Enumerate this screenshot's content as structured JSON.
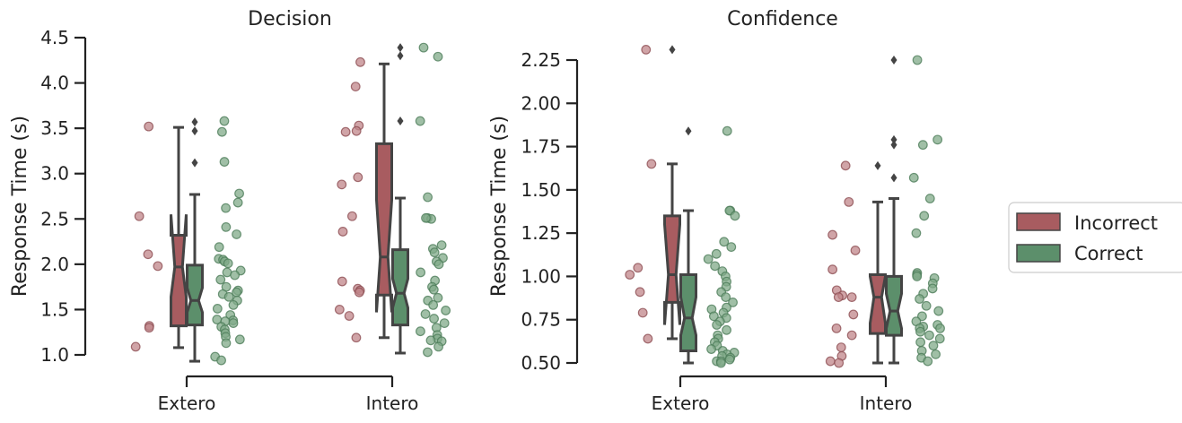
{
  "chart_data": [
    {
      "type": "box",
      "title": "Decision",
      "xlabel": "",
      "ylabel": "Response Time (s)",
      "ylim": [
        1.0,
        4.5
      ],
      "yticks": [
        1.0,
        1.5,
        2.0,
        2.5,
        3.0,
        3.5,
        4.0,
        4.5
      ],
      "ytick_labels": [
        "1.0",
        "1.5",
        "2.0",
        "2.5",
        "3.0",
        "3.5",
        "4.0",
        "4.5"
      ],
      "categories": [
        "Extero",
        "Intero"
      ],
      "series": [
        {
          "name": "Incorrect",
          "boxes": [
            {
              "q1": 1.32,
              "median": 1.97,
              "q3": 2.32,
              "ci_low": 1.64,
              "ci_high": 2.55,
              "whislo": 1.08,
              "whishi": 3.51,
              "fliers": []
            },
            {
              "q1": 1.66,
              "median": 2.08,
              "q3": 3.33,
              "ci_low": 1.47,
              "ci_high": 2.71,
              "whislo": 1.19,
              "whishi": 4.21,
              "fliers": []
            }
          ],
          "points": [
            [
              3.52,
              2.53,
              2.11,
              1.98,
              1.32,
              1.3,
              1.09
            ],
            [
              4.23,
              3.96,
              3.53,
              3.47,
              3.46,
              2.96,
              2.88,
              2.53,
              2.36,
              1.81,
              1.73,
              1.71,
              1.69,
              1.5,
              1.43,
              1.19
            ]
          ]
        },
        {
          "name": "Correct",
          "boxes": [
            {
              "q1": 1.33,
              "median": 1.6,
              "q3": 1.99,
              "ci_low": 1.47,
              "ci_high": 1.74,
              "whislo": 0.93,
              "whishi": 2.77,
              "fliers": [
                3.57,
                3.47,
                3.12
              ]
            },
            {
              "q1": 1.33,
              "median": 1.68,
              "q3": 2.16,
              "ci_low": 1.52,
              "ci_high": 1.84,
              "whislo": 1.02,
              "whishi": 2.73,
              "fliers": [
                4.39,
                4.3,
                3.58
              ]
            }
          ],
          "points": [
            [
              3.58,
              3.46,
              3.13,
              2.78,
              2.68,
              2.62,
              2.41,
              2.33,
              2.19,
              2.06,
              2.05,
              2.03,
              2.01,
              1.93,
              1.91,
              1.88,
              1.83,
              1.75,
              1.71,
              1.69,
              1.67,
              1.64,
              1.6,
              1.55,
              1.51,
              1.44,
              1.39,
              1.38,
              1.37,
              1.35,
              1.31,
              1.28,
              1.24,
              1.2,
              1.17,
              1.13,
              0.98,
              0.94
            ],
            [
              4.39,
              4.29,
              3.58,
              2.74,
              2.51,
              2.5,
              2.51,
              2.21,
              2.17,
              2.13,
              2.07,
              2.03,
              2.0,
              1.91,
              1.82,
              1.75,
              1.72,
              1.63,
              1.6,
              1.55,
              1.49,
              1.45,
              1.4,
              1.35,
              1.3,
              1.26,
              1.22,
              1.18,
              1.16,
              1.15,
              1.09,
              1.03
            ]
          ]
        }
      ]
    },
    {
      "type": "box",
      "title": "Confidence",
      "xlabel": "",
      "ylabel": "Response Time (s)",
      "ylim": [
        0.5,
        2.25
      ],
      "yticks": [
        0.5,
        0.75,
        1.0,
        1.25,
        1.5,
        1.75,
        2.0,
        2.25
      ],
      "ytick_labels": [
        "0.50",
        "0.75",
        "1.00",
        "1.25",
        "1.50",
        "1.75",
        "2.00",
        "2.25"
      ],
      "categories": [
        "Extero",
        "Intero"
      ],
      "series": [
        {
          "name": "Incorrect",
          "boxes": [
            {
              "q1": 0.85,
              "median": 1.01,
              "q3": 1.35,
              "ci_low": 0.72,
              "ci_high": 1.3,
              "whislo": 0.64,
              "whishi": 1.65,
              "fliers": [
                2.31
              ]
            },
            {
              "q1": 0.67,
              "median": 0.88,
              "q3": 1.01,
              "ci_low": 0.73,
              "ci_high": 1.0,
              "whislo": 0.5,
              "whishi": 1.43,
              "fliers": [
                1.64
              ]
            }
          ],
          "points": [
            [
              2.31,
              1.65,
              1.05,
              1.01,
              0.91,
              0.79,
              0.64
            ],
            [
              1.64,
              1.43,
              1.24,
              1.15,
              1.04,
              0.92,
              0.89,
              0.88,
              0.88,
              0.78,
              0.7,
              0.66,
              0.59,
              0.54,
              0.51,
              0.5
            ]
          ]
        },
        {
          "name": "Correct",
          "boxes": [
            {
              "q1": 0.57,
              "median": 0.76,
              "q3": 1.01,
              "ci_low": 0.66,
              "ci_high": 0.88,
              "whislo": 0.5,
              "whishi": 1.38,
              "fliers": [
                1.84
              ]
            },
            {
              "q1": 0.66,
              "median": 0.8,
              "q3": 1.0,
              "ci_low": 0.7,
              "ci_high": 0.9,
              "whislo": 0.5,
              "whishi": 1.45,
              "fliers": [
                2.25,
                1.79,
                1.76,
                1.57
              ]
            }
          ],
          "points": [
            [
              1.84,
              1.38,
              1.38,
              1.35,
              1.2,
              1.17,
              1.13,
              1.1,
              1.06,
              1.03,
              1.0,
              0.97,
              0.94,
              0.91,
              0.88,
              0.85,
              0.82,
              0.81,
              0.79,
              0.77,
              0.76,
              0.74,
              0.72,
              0.69,
              0.66,
              0.64,
              0.62,
              0.6,
              0.58,
              0.57,
              0.56,
              0.55,
              0.54,
              0.53,
              0.52,
              0.51,
              0.51,
              0.5
            ],
            [
              2.25,
              1.79,
              1.76,
              1.57,
              1.45,
              1.35,
              1.25,
              1.02,
              1.01,
              1.0,
              0.99,
              0.96,
              0.93,
              0.9,
              0.87,
              0.83,
              0.8,
              0.77,
              0.74,
              0.72,
              0.71,
              0.7,
              0.7,
              0.68,
              0.66,
              0.64,
              0.62,
              0.6,
              0.57,
              0.55,
              0.53,
              0.51
            ]
          ]
        }
      ]
    }
  ],
  "legend": {
    "position": "center-right",
    "items": [
      {
        "label": "Incorrect",
        "color": "#a85c60"
      },
      {
        "label": "Correct",
        "color": "#5c8f6b"
      }
    ]
  },
  "colors": {
    "incorrect_box": "#a85c60",
    "correct_box": "#5c8f6b",
    "incorrect_point": "#c08589",
    "correct_point": "#80aa88",
    "box_edge": "#444444"
  }
}
